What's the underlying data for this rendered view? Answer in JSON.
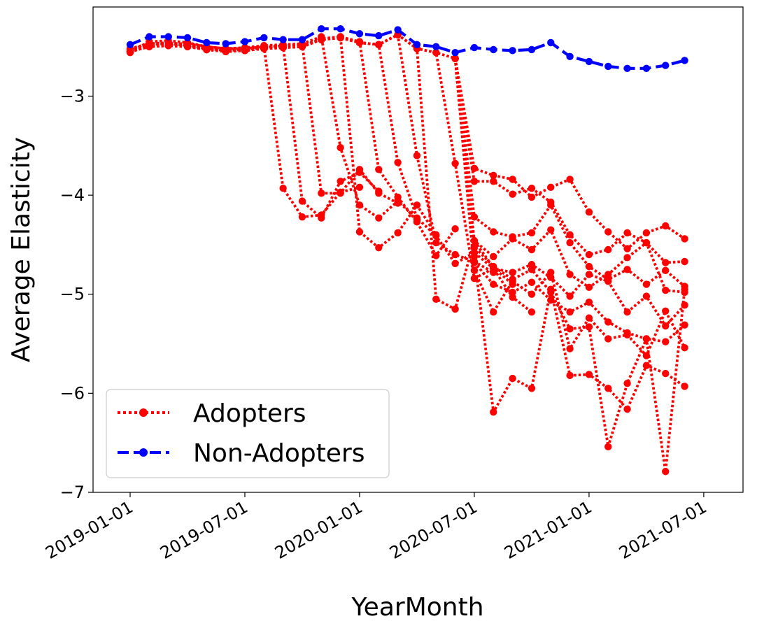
{
  "chart_data": {
    "type": "line",
    "title": "",
    "xlabel": "YearMonth",
    "ylabel": "Average Elasticity",
    "x_tick_labels": [
      "2019-01-01",
      "2019-07-01",
      "2020-01-01",
      "2020-07-01",
      "2021-01-01",
      "2021-07-01"
    ],
    "y_tick_labels": [
      "−7",
      "−6",
      "−5",
      "−4",
      "−3"
    ],
    "y_ticks": [
      -7,
      -6,
      -5,
      -4,
      -3
    ],
    "xlim": [
      -2,
      32
    ],
    "ylim": [
      -7.0,
      -2.1
    ],
    "x_axis_note": "x is months since 2019-01 (0 = 2019-01-01)",
    "legend": {
      "position": "lower-left",
      "entries": [
        "Adopters",
        "Non-Adopters"
      ]
    },
    "colors": {
      "adopters": "#ff0000",
      "non_adopters": "#0000ff"
    },
    "non_adopters": {
      "name": "Non-Adopters",
      "x": [
        0,
        1,
        2,
        3,
        4,
        5,
        6,
        7,
        8,
        9,
        10,
        11,
        12,
        13,
        14,
        15,
        16,
        17,
        18,
        19,
        20,
        21,
        22,
        23,
        24,
        25,
        26,
        27,
        28,
        29
      ],
      "values": [
        -2.48,
        -2.4,
        -2.4,
        -2.41,
        -2.46,
        -2.47,
        -2.45,
        -2.41,
        -2.43,
        -2.43,
        -2.32,
        -2.32,
        -2.37,
        -2.39,
        -2.33,
        -2.48,
        -2.5,
        -2.56,
        -2.51,
        -2.53,
        -2.54,
        -2.53,
        -2.46,
        -2.6,
        -2.65,
        -2.7,
        -2.72,
        -2.72,
        -2.69,
        -2.64
      ]
    },
    "adopters": {
      "name": "Adopters",
      "series": [
        {
          "adopt_month": 7,
          "x": [
            0,
            1,
            2,
            3,
            4,
            5,
            6,
            7,
            8,
            9,
            10,
            11,
            12
          ],
          "values": [
            -2.55,
            -2.45,
            -2.44,
            -2.46,
            -2.5,
            -2.52,
            -2.52,
            -2.5,
            -3.93,
            -4.22,
            -4.2,
            -3.97,
            -3.92
          ]
        },
        {
          "adopt_month": 8,
          "x": [
            0,
            1,
            2,
            3,
            4,
            5,
            6,
            7,
            8,
            9,
            10,
            11,
            12,
            13
          ],
          "values": [
            -2.56,
            -2.48,
            -2.47,
            -2.49,
            -2.52,
            -2.54,
            -2.53,
            -2.51,
            -2.49,
            -4.06,
            -4.23,
            -3.86,
            -3.77,
            -3.96
          ]
        },
        {
          "adopt_month": 9,
          "x": [
            0,
            1,
            2,
            3,
            4,
            5,
            6,
            7,
            8,
            9,
            10,
            11,
            12,
            13,
            14
          ],
          "values": [
            -2.53,
            -2.47,
            -2.46,
            -2.48,
            -2.51,
            -2.53,
            -2.52,
            -2.5,
            -2.49,
            -2.48,
            -3.98,
            -3.98,
            -3.74,
            -3.98,
            -4.08
          ]
        },
        {
          "adopt_month": 10,
          "x": [
            0,
            1,
            2,
            3,
            4,
            5,
            6,
            7,
            8,
            9,
            10,
            11,
            12,
            13,
            14,
            15
          ],
          "values": [
            -2.52,
            -2.47,
            -2.47,
            -2.47,
            -2.5,
            -2.52,
            -2.51,
            -2.49,
            -2.48,
            -2.47,
            -2.4,
            -3.52,
            -4.1,
            -4.23,
            -4.06,
            -4.24
          ]
        },
        {
          "adopt_month": 11,
          "x": [
            0,
            1,
            2,
            3,
            4,
            5,
            6,
            7,
            8,
            9,
            10,
            11,
            12,
            13,
            14,
            15,
            16
          ],
          "values": [
            -2.54,
            -2.49,
            -2.48,
            -2.49,
            -2.52,
            -2.54,
            -2.53,
            -2.51,
            -2.5,
            -2.49,
            -2.42,
            -2.4,
            -4.37,
            -4.53,
            -4.38,
            -4.1,
            -4.4
          ]
        },
        {
          "adopt_month": 12,
          "x": [
            0,
            1,
            2,
            3,
            4,
            5,
            6,
            7,
            8,
            9,
            10,
            11,
            12,
            13,
            14,
            15,
            16,
            17
          ],
          "values": [
            -2.55,
            -2.5,
            -2.49,
            -2.5,
            -2.53,
            -2.55,
            -2.54,
            -2.52,
            -2.51,
            -2.5,
            -2.43,
            -2.4,
            -2.45,
            -3.74,
            -4.02,
            -4.27,
            -4.61,
            -4.34
          ]
        },
        {
          "adopt_month": 13,
          "x": [
            0,
            1,
            2,
            3,
            4,
            5,
            6,
            7,
            8,
            9,
            10,
            11,
            12,
            13,
            14,
            15,
            16,
            17,
            18
          ],
          "values": [
            -2.55,
            -2.5,
            -2.49,
            -2.5,
            -2.53,
            -2.55,
            -2.54,
            -2.52,
            -2.51,
            -2.5,
            -2.43,
            -2.41,
            -2.46,
            -2.48,
            -3.67,
            -4.23,
            -4.41,
            -4.69,
            -4.58
          ]
        },
        {
          "adopt_month": 14,
          "x": [
            0,
            1,
            2,
            3,
            4,
            5,
            6,
            7,
            8,
            9,
            10,
            11,
            12,
            13,
            14,
            15,
            16,
            17,
            18,
            19
          ],
          "values": [
            -2.55,
            -2.5,
            -2.49,
            -2.5,
            -2.53,
            -2.55,
            -2.54,
            -2.52,
            -2.51,
            -2.5,
            -2.43,
            -2.41,
            -2.46,
            -2.48,
            -2.38,
            -3.6,
            -4.48,
            -4.6,
            -4.67,
            -4.78
          ]
        },
        {
          "adopt_month": 15,
          "x": [
            0,
            1,
            2,
            3,
            4,
            5,
            6,
            7,
            8,
            9,
            10,
            11,
            12,
            13,
            14,
            15,
            16,
            17,
            18,
            19,
            20
          ],
          "values": [
            -2.55,
            -2.5,
            -2.49,
            -2.5,
            -2.53,
            -2.55,
            -2.54,
            -2.52,
            -2.51,
            -2.5,
            -2.43,
            -2.41,
            -2.46,
            -2.48,
            -2.38,
            -2.52,
            -5.05,
            -5.15,
            -4.46,
            -4.73,
            -4.9
          ]
        },
        {
          "adopt_month": 16,
          "x": [
            0,
            1,
            2,
            3,
            4,
            5,
            6,
            7,
            8,
            9,
            10,
            11,
            12,
            13,
            14,
            15,
            16,
            17,
            18,
            19,
            20,
            21
          ],
          "values": [
            -2.55,
            -2.5,
            -2.49,
            -2.5,
            -2.53,
            -2.55,
            -2.54,
            -2.52,
            -2.51,
            -2.5,
            -2.43,
            -2.41,
            -2.46,
            -2.48,
            -2.38,
            -2.52,
            -2.56,
            -3.68,
            -4.84,
            -4.74,
            -5.03,
            -5.18
          ]
        },
        {
          "adopt_month": 17,
          "x": [
            0,
            1,
            2,
            3,
            4,
            5,
            6,
            7,
            8,
            9,
            10,
            11,
            12,
            13,
            14,
            15,
            16,
            17,
            18,
            19,
            20,
            21,
            22,
            23,
            24,
            25,
            26,
            27,
            28,
            29
          ],
          "values": [
            -2.55,
            -2.5,
            -2.49,
            -2.5,
            -2.53,
            -2.55,
            -2.54,
            -2.52,
            -2.51,
            -2.5,
            -2.43,
            -2.41,
            -2.46,
            -2.48,
            -2.38,
            -2.52,
            -2.56,
            -2.62,
            -3.73,
            -3.8,
            -3.84,
            -4.02,
            -3.92,
            -3.84,
            -4.17,
            -4.37,
            -4.54,
            -4.38,
            -4.31,
            -4.44
          ]
        },
        {
          "adopt_month": 17,
          "x": [
            17,
            18,
            19,
            20,
            21,
            22,
            23,
            24,
            25,
            26,
            27,
            28,
            29
          ],
          "values": [
            -2.62,
            -3.86,
            -3.86,
            -3.99,
            -3.93,
            -4.07,
            -4.4,
            -4.6,
            -4.55,
            -4.38,
            -4.48,
            -4.68,
            -4.67
          ]
        },
        {
          "adopt_month": 17,
          "x": [
            17,
            18,
            19,
            20,
            21,
            22,
            23,
            24,
            25,
            26,
            27,
            28,
            29
          ],
          "values": [
            -2.62,
            -4.22,
            -4.37,
            -4.42,
            -4.38,
            -4.1,
            -4.48,
            -4.72,
            -4.85,
            -4.75,
            -4.9,
            -4.76,
            -4.92
          ]
        },
        {
          "adopt_month": 17,
          "x": [
            17,
            18,
            19,
            20,
            21,
            22,
            23,
            24,
            25,
            26,
            27,
            28,
            29
          ],
          "values": [
            -2.62,
            -4.46,
            -4.62,
            -4.44,
            -4.55,
            -4.35,
            -4.8,
            -4.93,
            -4.8,
            -4.63,
            -4.48,
            -4.96,
            -4.98
          ]
        },
        {
          "adopt_month": 17,
          "x": [
            17,
            18,
            19,
            20,
            21,
            22,
            23,
            24,
            25,
            26,
            27,
            28,
            29
          ],
          "values": [
            -2.62,
            -4.58,
            -4.74,
            -4.78,
            -4.7,
            -4.83,
            -5.02,
            -4.8,
            -4.87,
            -5.18,
            -5.02,
            -5.32,
            -5.11
          ]
        },
        {
          "adopt_month": 17,
          "x": [
            17,
            18,
            19,
            20,
            21,
            22,
            23,
            24,
            25,
            26,
            27,
            28,
            29
          ],
          "values": [
            -2.62,
            -4.68,
            -4.9,
            -4.98,
            -4.88,
            -5.06,
            -5.18,
            -5.08,
            -5.28,
            -5.39,
            -5.45,
            -5.48,
            -5.31
          ]
        },
        {
          "adopt_month": 17,
          "x": [
            17,
            18,
            19,
            20,
            21,
            22,
            23,
            24,
            25,
            26,
            27,
            28,
            29
          ],
          "values": [
            -2.62,
            -4.76,
            -5.18,
            -4.87,
            -5.0,
            -4.78,
            -5.55,
            -5.24,
            -5.45,
            -5.41,
            -5.62,
            -5.17,
            -5.54
          ]
        },
        {
          "adopt_month": 17,
          "x": [
            17,
            18,
            19,
            20,
            21,
            22,
            23,
            24,
            25,
            26,
            27,
            28,
            29
          ],
          "values": [
            -2.62,
            -4.62,
            -6.19,
            -5.85,
            -5.95,
            -4.95,
            -5.82,
            -5.81,
            -5.95,
            -6.16,
            -5.72,
            -5.8,
            -5.93
          ]
        },
        {
          "adopt_month": 17,
          "x": [
            17,
            18,
            19,
            20,
            21,
            22,
            23,
            24,
            25,
            26,
            27,
            28,
            29
          ],
          "values": [
            -2.62,
            -4.52,
            -4.72,
            -4.85,
            -4.75,
            -4.98,
            -5.35,
            -5.33,
            -6.54,
            -5.9,
            -5.45,
            -6.79,
            -4.95
          ]
        }
      ]
    }
  }
}
